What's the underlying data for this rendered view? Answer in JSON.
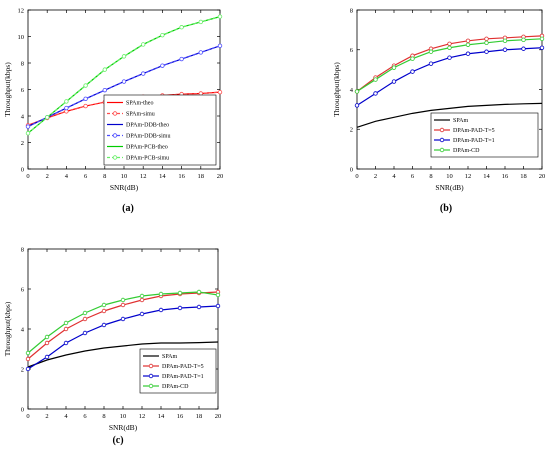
{
  "chart_data": [
    {
      "type": "line",
      "panel_label": "(a)",
      "title": "",
      "xlabel": "SNR(dB)",
      "ylabel": "Throughput(kbps)",
      "xlim": [
        0,
        20
      ],
      "ylim": [
        0,
        12
      ],
      "xticks": [
        0,
        2,
        4,
        6,
        8,
        10,
        12,
        14,
        16,
        18,
        20
      ],
      "yticks": [
        0,
        2,
        4,
        6,
        8,
        10,
        12
      ],
      "grid": false,
      "legend_position": "bottom-right",
      "x": [
        0,
        2,
        4,
        6,
        8,
        10,
        12,
        14,
        16,
        18,
        20
      ],
      "series": [
        {
          "name": "SPAm-theo",
          "color": "#ff0000",
          "dash": "solid",
          "marker": "none",
          "values": [
            3.3,
            3.85,
            4.35,
            4.75,
            5.05,
            5.3,
            5.45,
            5.55,
            5.65,
            5.7,
            5.8
          ]
        },
        {
          "name": "SPAm-simu",
          "color": "#ff4d4d",
          "dash": "dashed",
          "marker": "circle",
          "values": [
            3.3,
            3.85,
            4.35,
            4.75,
            5.05,
            5.3,
            5.45,
            5.55,
            5.65,
            5.7,
            5.8
          ]
        },
        {
          "name": "DPAm-DDB-theo",
          "color": "#0000cc",
          "dash": "solid",
          "marker": "none",
          "values": [
            3.2,
            3.9,
            4.6,
            5.3,
            5.95,
            6.6,
            7.2,
            7.8,
            8.3,
            8.8,
            9.3
          ]
        },
        {
          "name": "DPAm-DDB-simu",
          "color": "#4d4dff",
          "dash": "dashed",
          "marker": "circle",
          "values": [
            3.2,
            3.9,
            4.6,
            5.3,
            5.95,
            6.6,
            7.2,
            7.8,
            8.3,
            8.8,
            9.3
          ]
        },
        {
          "name": "DPAm-PCB-theo",
          "color": "#00cc00",
          "dash": "solid",
          "marker": "none",
          "values": [
            2.7,
            3.9,
            5.1,
            6.3,
            7.5,
            8.5,
            9.4,
            10.1,
            10.7,
            11.1,
            11.5
          ]
        },
        {
          "name": "DPAm-PCB-simu",
          "color": "#66ee66",
          "dash": "dashed",
          "marker": "circle",
          "values": [
            2.7,
            3.9,
            5.1,
            6.3,
            7.5,
            8.5,
            9.4,
            10.1,
            10.7,
            11.1,
            11.5
          ]
        }
      ]
    },
    {
      "type": "line",
      "panel_label": "(b)",
      "title": "",
      "xlabel": "SNR(dB)",
      "ylabel": "Throughput(kbps)",
      "xlim": [
        0,
        20
      ],
      "ylim": [
        0,
        8
      ],
      "xticks": [
        0,
        2,
        4,
        6,
        8,
        10,
        12,
        14,
        16,
        18,
        20
      ],
      "yticks": [
        0,
        2,
        4,
        6,
        8
      ],
      "grid": false,
      "legend_position": "bottom-right",
      "x": [
        0,
        2,
        4,
        6,
        8,
        10,
        12,
        14,
        16,
        18,
        20
      ],
      "series": [
        {
          "name": "SPAm",
          "color": "#000000",
          "dash": "solid",
          "marker": "none",
          "values": [
            2.1,
            2.4,
            2.6,
            2.8,
            2.95,
            3.05,
            3.15,
            3.2,
            3.25,
            3.28,
            3.3
          ]
        },
        {
          "name": "DPAm-PAD-T=5",
          "color": "#e03030",
          "dash": "solid",
          "marker": "circle",
          "values": [
            3.9,
            4.6,
            5.2,
            5.7,
            6.05,
            6.3,
            6.45,
            6.55,
            6.6,
            6.65,
            6.7
          ]
        },
        {
          "name": "DPAm-PAD-T=1",
          "color": "#0000cc",
          "dash": "solid",
          "marker": "circle",
          "values": [
            3.2,
            3.8,
            4.4,
            4.9,
            5.3,
            5.6,
            5.8,
            5.9,
            6.0,
            6.05,
            6.1
          ]
        },
        {
          "name": "DPAm-CD",
          "color": "#33cc33",
          "dash": "solid",
          "marker": "circle",
          "values": [
            3.9,
            4.5,
            5.1,
            5.55,
            5.9,
            6.1,
            6.25,
            6.35,
            6.45,
            6.5,
            6.55
          ]
        }
      ]
    },
    {
      "type": "line",
      "panel_label": "(c)",
      "title": "",
      "xlabel": "SNR(dB)",
      "ylabel": "Throughput(kbps)",
      "xlim": [
        0,
        20
      ],
      "ylim": [
        0,
        8
      ],
      "xticks": [
        0,
        2,
        4,
        6,
        8,
        10,
        12,
        14,
        16,
        18,
        20
      ],
      "yticks": [
        0,
        2,
        4,
        6,
        8
      ],
      "grid": false,
      "legend_position": "bottom-right",
      "x": [
        0,
        2,
        4,
        6,
        8,
        10,
        12,
        14,
        16,
        18,
        20
      ],
      "series": [
        {
          "name": "SPAm",
          "color": "#000000",
          "dash": "solid",
          "marker": "none",
          "values": [
            2.1,
            2.45,
            2.7,
            2.9,
            3.05,
            3.15,
            3.25,
            3.3,
            3.3,
            3.32,
            3.35
          ]
        },
        {
          "name": "DPAm-PAD-T=5",
          "color": "#e03030",
          "dash": "solid",
          "marker": "circle",
          "values": [
            2.5,
            3.3,
            4.0,
            4.5,
            4.9,
            5.2,
            5.45,
            5.65,
            5.75,
            5.8,
            5.85
          ]
        },
        {
          "name": "DPAm-PAD-T=1",
          "color": "#0000cc",
          "dash": "solid",
          "marker": "circle",
          "values": [
            2.0,
            2.6,
            3.3,
            3.8,
            4.2,
            4.5,
            4.75,
            4.95,
            5.05,
            5.1,
            5.15
          ]
        },
        {
          "name": "DPAm-CD",
          "color": "#33cc33",
          "dash": "solid",
          "marker": "circle",
          "values": [
            2.8,
            3.6,
            4.3,
            4.8,
            5.2,
            5.45,
            5.65,
            5.75,
            5.8,
            5.85,
            5.7
          ]
        }
      ]
    }
  ]
}
